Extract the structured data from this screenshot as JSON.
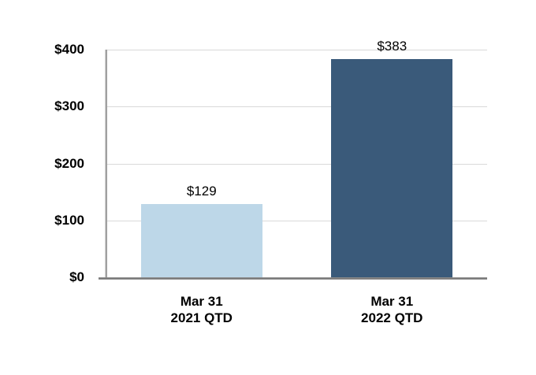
{
  "chart_data": {
    "type": "bar",
    "title": "",
    "xlabel": "",
    "ylabel": "",
    "categories": [
      "Mar 31 2021 QTD",
      "Mar 31 2022 QTD"
    ],
    "category_lines": [
      [
        "Mar 31",
        "2021 QTD"
      ],
      [
        "Mar 31",
        "2022 QTD"
      ]
    ],
    "values": [
      129,
      383
    ],
    "value_labels": [
      "$129",
      "$383"
    ],
    "bar_colors": [
      "#BDD7E8",
      "#3A5A7A"
    ],
    "ylim": [
      0,
      400
    ],
    "yticks": [
      0,
      100,
      200,
      300,
      400
    ],
    "ytick_labels": [
      "$0",
      "$100",
      "$200",
      "$300",
      "$400"
    ],
    "grid": true,
    "legend": false
  },
  "colors": {
    "background": "#FFFFFF",
    "gridline": "#D9D9D9",
    "y_axis_line": "#A0A0A0",
    "x_axis_line": "#7F7F7F",
    "text": "#000000",
    "bar_2021": "#BDD7E8",
    "bar_2022": "#3A5A7A"
  }
}
